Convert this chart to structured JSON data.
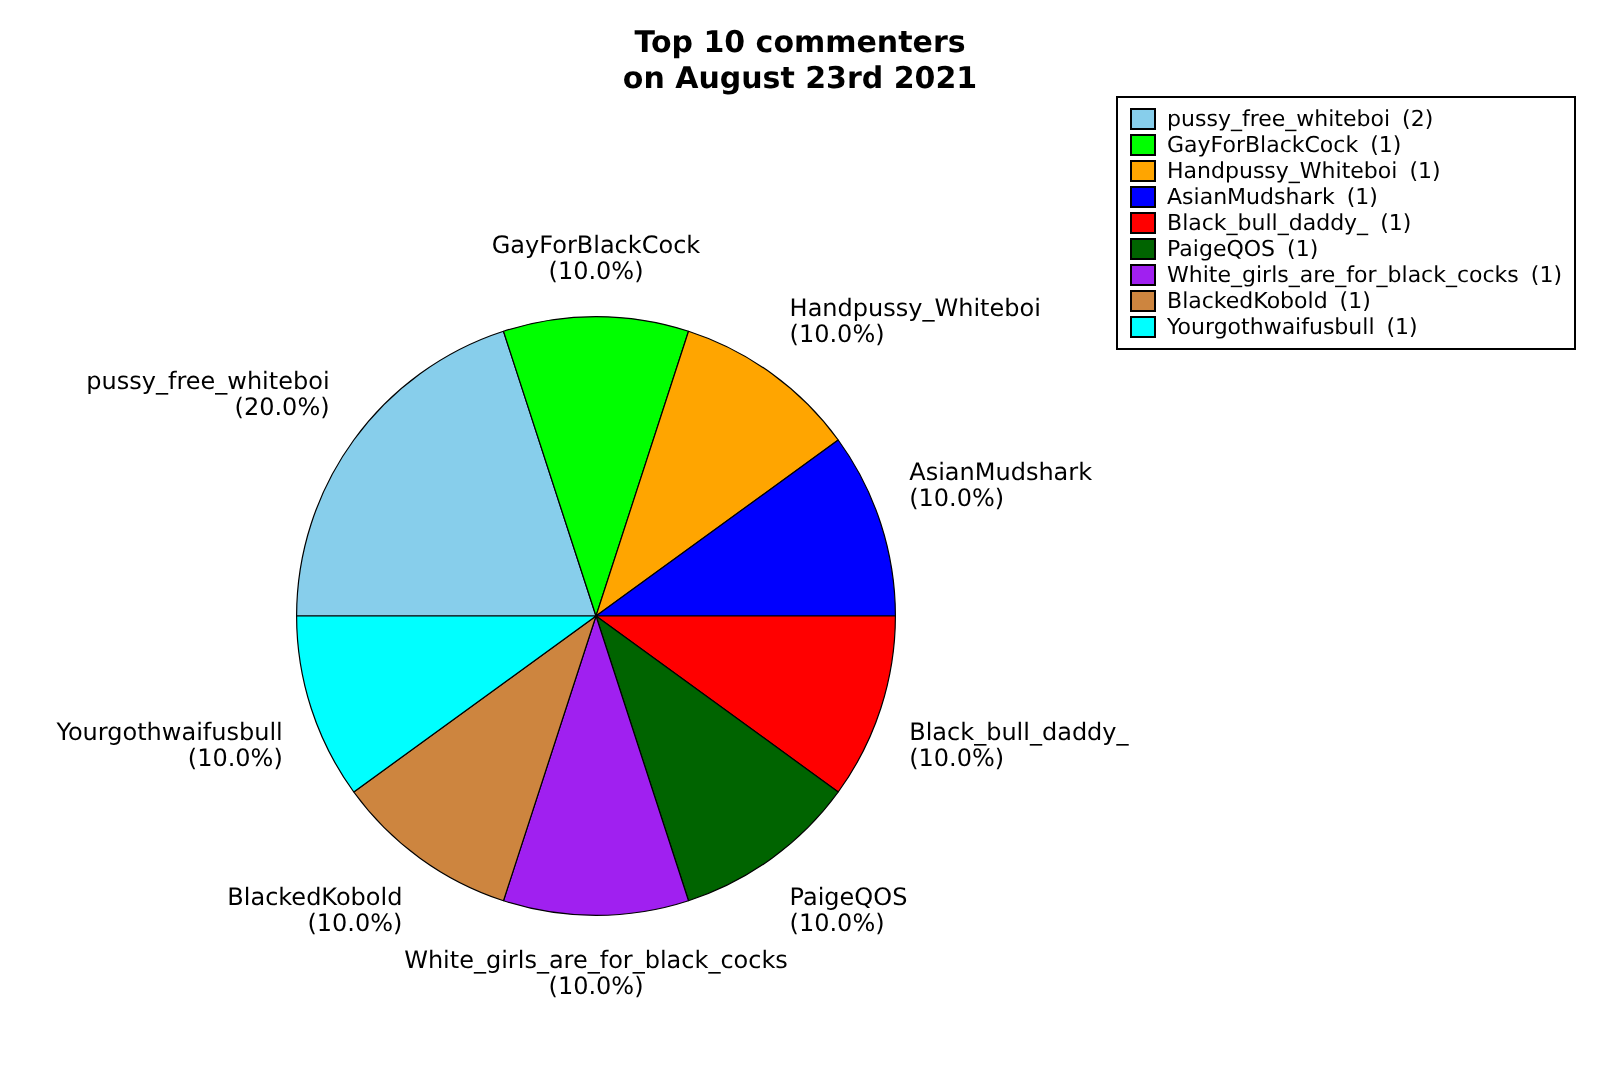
{
  "chart_data": {
    "type": "pie",
    "title": "Top 10 commenters\non August 23rd 2021",
    "categories": [
      "pussy_free_whiteboi",
      "GayForBlackCock",
      "Handpussy_Whiteboi",
      "AsianMudshark",
      "Black_bull_daddy_",
      "PaigeQOS",
      "White_girls_are_for_black_cocks",
      "BlackedKobold",
      "Yourgothwaifusbull"
    ],
    "values": [
      20,
      10,
      10,
      10,
      10,
      10,
      10,
      10,
      10
    ],
    "value_labels": [
      "(20.0%)",
      "(10.0%)",
      "(10.0%)",
      "(10.0%)",
      "(10.0%)",
      "(10.0%)",
      "(10.0%)",
      "(10.0%)",
      "(10.0%)"
    ],
    "colors": [
      "#87ceeb",
      "#00ff00",
      "#ffa500",
      "#0000ff",
      "#ff0000",
      "#006400",
      "#a020f0",
      "#cd853f",
      "#00ffff"
    ],
    "annotations": [
      "(2)",
      "(1)",
      "(1)",
      "(1)",
      "(1)",
      "(1)",
      "(1)",
      "(1)",
      "(1)"
    ],
    "legend": "top right"
  }
}
